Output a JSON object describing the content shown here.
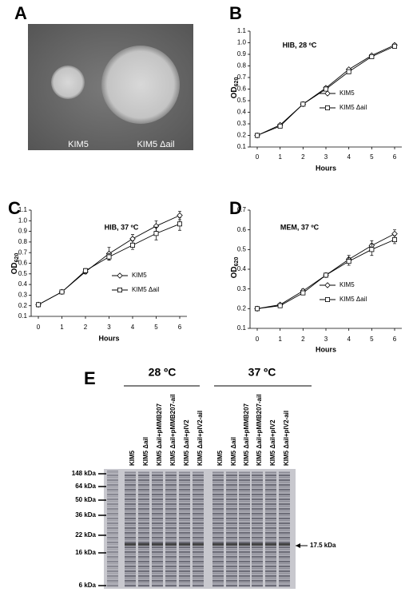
{
  "panel_labels": [
    "A",
    "B",
    "C",
    "D",
    "E"
  ],
  "photo": {
    "labels": [
      "KIM5",
      "KIM5 Δail"
    ]
  },
  "chart_data": [
    {
      "type": "line",
      "title": "HIB, 28 ºC",
      "xlabel": "Hours",
      "ylabel": "OD",
      "ylabel_subscript": "620",
      "x": [
        0,
        1,
        2,
        3,
        4,
        5,
        6
      ],
      "xlim": [
        0,
        6
      ],
      "xticks": [
        0,
        1,
        2,
        3,
        4,
        5,
        6
      ],
      "ylim": [
        0.1,
        1.1
      ],
      "yticks": [
        0.1,
        0.2,
        0.3,
        0.4,
        0.5,
        0.6,
        0.7,
        0.8,
        0.9,
        {
          "value": 1,
          "label": "1.0"
        },
        1.1
      ],
      "series": [
        {
          "name": "KIM5",
          "color": "#000000",
          "marker": "diamond",
          "values": [
            0.2,
            0.29,
            0.47,
            0.61,
            0.77,
            0.89,
            0.98
          ]
        },
        {
          "name": "KIM5 Δail",
          "color": "#000000",
          "marker": "square",
          "values": [
            0.2,
            0.28,
            0.47,
            0.6,
            0.75,
            0.88,
            0.97
          ]
        }
      ]
    },
    {
      "type": "line",
      "title": "HIB, 37 ºC",
      "xlabel": "Hours",
      "ylabel": "OD",
      "ylabel_subscript": "620",
      "x": [
        0,
        1,
        2,
        3,
        4,
        5,
        6
      ],
      "xlim": [
        0,
        6
      ],
      "xticks": [
        0,
        1,
        2,
        3,
        4,
        5,
        6
      ],
      "ylim": [
        0.1,
        1.1
      ],
      "yticks": [
        0.1,
        0.2,
        0.3,
        0.4,
        0.5,
        0.6,
        0.7,
        0.8,
        0.9,
        {
          "value": 1,
          "label": "1.0"
        },
        1.1
      ],
      "series": [
        {
          "name": "KIM5",
          "color": "#000000",
          "marker": "diamond",
          "values": [
            0.21,
            0.33,
            0.52,
            0.69,
            0.83,
            0.95,
            1.05
          ],
          "errors": [
            0.005,
            0.01,
            0.02,
            0.06,
            0.04,
            0.05,
            0.04
          ]
        },
        {
          "name": "KIM5 Δail",
          "color": "#000000",
          "marker": "square",
          "values": [
            0.21,
            0.33,
            0.53,
            0.66,
            0.77,
            0.88,
            0.97
          ],
          "errors": [
            0.005,
            0.01,
            0.02,
            0.03,
            0.04,
            0.06,
            0.06
          ]
        }
      ]
    },
    {
      "type": "line",
      "title": "MEM, 37 ºC",
      "xlabel": "Hours",
      "ylabel": "OD",
      "ylabel_subscript": "620",
      "x": [
        0,
        1,
        2,
        3,
        4,
        5,
        6
      ],
      "xlim": [
        0,
        6
      ],
      "xticks": [
        0,
        1,
        2,
        3,
        4,
        5,
        6
      ],
      "ylim": [
        0.1,
        0.7
      ],
      "yticks": [
        0.1,
        0.2,
        0.3,
        0.4,
        0.5,
        0.6,
        0.7
      ],
      "series": [
        {
          "name": "KIM5",
          "color": "#000000",
          "marker": "diamond",
          "values": [
            0.2,
            0.22,
            0.29,
            0.37,
            0.45,
            0.52,
            0.58
          ],
          "errors": [
            0.003,
            0.005,
            0.01,
            0.01,
            0.02,
            0.025,
            0.02
          ]
        },
        {
          "name": "KIM5 Δail",
          "color": "#000000",
          "marker": "square",
          "values": [
            0.2,
            0.215,
            0.28,
            0.37,
            0.44,
            0.5,
            0.55
          ],
          "errors": [
            0.003,
            0.005,
            0.01,
            0.01,
            0.02,
            0.03,
            0.02
          ]
        }
      ]
    }
  ],
  "gel": {
    "conditions": [
      "28 ºC",
      "37 ºC"
    ],
    "lanes": [
      "KIM5",
      "KIM5 Δail",
      "KIM5 Δail+pMMB207",
      "KIM5 Δail+pMMB207-ail",
      "KIM5 Δail+pIV2",
      "KIM5 Δail+pIV2-ail",
      "KIM5",
      "KIM5 Δail",
      "KIM5 Δail+pMMB207",
      "KIM5 Δail+pMMB207-ail",
      "KIM5 Δail+pIV2",
      "KIM5 Δail+pIV2-ail"
    ],
    "markers": [
      "148 kDa",
      "64 kDa",
      "50 kDa",
      "36 kDa",
      "22 kDa",
      "16 kDa",
      "6 kDa"
    ],
    "arrow_label": "17.5 kDa"
  }
}
